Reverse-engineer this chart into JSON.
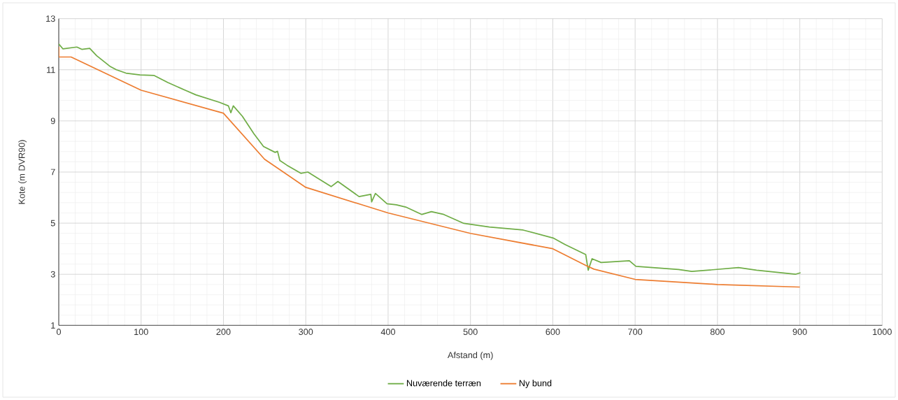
{
  "chart_data": {
    "type": "line",
    "xlabel": "Afstand (m)",
    "ylabel": "Kote (m DVR90)",
    "xlim": [
      0,
      1000
    ],
    "xticks": [
      0,
      100,
      200,
      300,
      400,
      500,
      600,
      700,
      800,
      900,
      1000
    ],
    "ylim": [
      1,
      13
    ],
    "yticks": [
      1,
      3,
      5,
      7,
      9,
      11,
      13
    ],
    "grid": true,
    "legend": "bottom",
    "marker": "none",
    "line_style": "solid",
    "series": [
      {
        "name": "Nuværende terræn",
        "color": "#70ad47",
        "x": [
          0,
          5,
          22,
          28,
          37.6,
          46,
          62,
          70,
          81.6,
          98.6,
          115.5,
          132.5,
          155,
          166.5,
          195,
          206,
          209,
          212,
          223,
          237,
          248.7,
          262.8,
          265.7,
          268.5,
          277,
          294,
          302.5,
          330.8,
          339,
          364.7,
          379,
          380,
          384.6,
          398.7,
          410,
          421.4,
          441,
          452.6,
          466.7,
          492,
          523,
          564,
          600.4,
          614.6,
          640,
          643,
          647.7,
          658.7,
          693,
          701,
          752.7,
          768.8,
          825.5,
          847.5,
          894.6,
          900.9
        ],
        "values": [
          12.01,
          11.82,
          11.89,
          11.8,
          11.84,
          11.55,
          11.14,
          11.0,
          10.87,
          10.8,
          10.78,
          10.5,
          10.18,
          10.02,
          9.73,
          9.59,
          9.32,
          9.59,
          9.18,
          8.5,
          8.0,
          7.77,
          7.81,
          7.45,
          7.27,
          6.95,
          7.0,
          6.43,
          6.63,
          6.04,
          6.13,
          5.83,
          6.16,
          5.76,
          5.72,
          5.63,
          5.34,
          5.45,
          5.35,
          4.99,
          4.85,
          4.73,
          4.42,
          4.17,
          3.77,
          3.16,
          3.61,
          3.46,
          3.53,
          3.31,
          3.19,
          3.11,
          3.26,
          3.16,
          3.0,
          3.06
        ]
      },
      {
        "name": "Ny bund",
        "color": "#ed7d31",
        "x": [
          0,
          0,
          15,
          100,
          200,
          250,
          300,
          370,
          400,
          500,
          600,
          640,
          650,
          700,
          800,
          900
        ],
        "values": [
          11.9,
          11.5,
          11.5,
          10.2,
          9.3,
          7.5,
          6.4,
          5.7,
          5.4,
          4.6,
          4.0,
          3.35,
          3.2,
          2.8,
          2.6,
          2.5
        ]
      }
    ]
  }
}
